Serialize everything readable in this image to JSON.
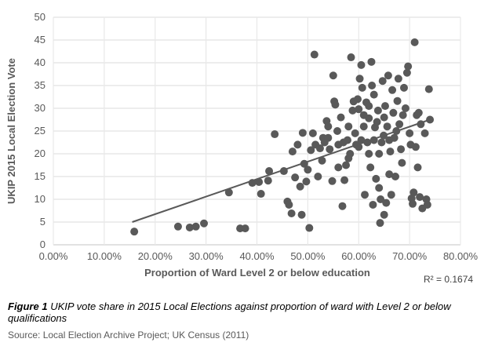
{
  "chart_data": {
    "type": "scatter",
    "title": "",
    "xlabel": "Proportion of Ward Level 2 or below education",
    "ylabel": "UKIP 2015 Local Election Vote",
    "xlim": [
      0,
      80
    ],
    "ylim": [
      0,
      50
    ],
    "x_ticks": [
      "0.00%",
      "10.00%",
      "20.00%",
      "30.00%",
      "40.00%",
      "50.00%",
      "60.00%",
      "70.00%",
      "80.00%"
    ],
    "x_tick_values": [
      0,
      10,
      20,
      30,
      40,
      50,
      60,
      70,
      80
    ],
    "y_ticks": [
      "0",
      "5",
      "10",
      "15",
      "20",
      "25",
      "30",
      "35",
      "40",
      "45",
      "50"
    ],
    "y_tick_values": [
      0,
      5,
      10,
      15,
      20,
      25,
      30,
      35,
      40,
      45,
      50
    ],
    "grid": true,
    "point_color": "#595959",
    "trendline": {
      "type": "linear",
      "x": [
        15.5,
        74
      ],
      "y": [
        5.0,
        27.5
      ],
      "color": "#595959"
    },
    "r_squared_label": "R² = 0.1674",
    "points": [
      [
        15.9,
        2.9
      ],
      [
        24.5,
        4.0
      ],
      [
        26.8,
        3.8
      ],
      [
        28,
        4.0
      ],
      [
        29.6,
        4.7
      ],
      [
        36.7,
        3.6
      ],
      [
        37.7,
        3.6
      ],
      [
        34.5,
        11.5
      ],
      [
        43.5,
        24.3
      ],
      [
        39.1,
        13.6
      ],
      [
        40.4,
        13.8
      ],
      [
        40.8,
        11.2
      ],
      [
        42.2,
        14.1
      ],
      [
        42.4,
        16.2
      ],
      [
        45.3,
        16.2
      ],
      [
        46,
        9.5
      ],
      [
        46.3,
        8.8
      ],
      [
        46.8,
        6.9
      ],
      [
        47,
        20.5
      ],
      [
        47.5,
        14.8
      ],
      [
        48,
        22
      ],
      [
        48.5,
        12.8
      ],
      [
        48.8,
        6.6
      ],
      [
        49,
        24.6
      ],
      [
        49.3,
        17.8
      ],
      [
        49.7,
        13.9
      ],
      [
        50,
        16.5
      ],
      [
        50.3,
        3.7
      ],
      [
        50.6,
        20.8
      ],
      [
        51,
        24.5
      ],
      [
        51.3,
        41.8
      ],
      [
        51.5,
        22
      ],
      [
        52,
        15
      ],
      [
        52.4,
        21.2
      ],
      [
        52.8,
        18.5
      ],
      [
        53,
        23.5
      ],
      [
        53.3,
        22.5
      ],
      [
        53.7,
        27.2
      ],
      [
        54,
        26
      ],
      [
        54.3,
        21
      ],
      [
        54.8,
        14
      ],
      [
        55,
        37.2
      ],
      [
        55.2,
        31.5
      ],
      [
        55.4,
        30.8
      ],
      [
        55.8,
        25
      ],
      [
        56,
        22
      ],
      [
        56.5,
        28
      ],
      [
        56.8,
        8.5
      ],
      [
        57,
        22.5
      ],
      [
        57.2,
        14.2
      ],
      [
        57.5,
        17.5
      ],
      [
        57.8,
        23
      ],
      [
        58,
        26
      ],
      [
        58.3,
        20
      ],
      [
        58.5,
        41.2
      ],
      [
        58.8,
        29.5
      ],
      [
        59,
        31.5
      ],
      [
        59.3,
        24.5
      ],
      [
        59.5,
        22
      ],
      [
        59.8,
        32
      ],
      [
        60,
        21.5
      ],
      [
        60.2,
        36.5
      ],
      [
        60.5,
        39.5
      ],
      [
        60.7,
        34.5
      ],
      [
        61,
        28.5
      ],
      [
        61.2,
        11
      ],
      [
        61.5,
        31.3
      ],
      [
        61.7,
        22.5
      ],
      [
        62,
        20
      ],
      [
        62.3,
        17
      ],
      [
        62.5,
        40.2
      ],
      [
        62.6,
        35
      ],
      [
        62.8,
        8.8
      ],
      [
        63,
        33
      ],
      [
        63.2,
        25.8
      ],
      [
        63.4,
        14.5
      ],
      [
        63.6,
        27
      ],
      [
        63.8,
        29.5
      ],
      [
        64,
        12.5
      ],
      [
        64.2,
        4.8
      ],
      [
        64.3,
        10
      ],
      [
        64.5,
        22.5
      ],
      [
        64.7,
        36
      ],
      [
        64.9,
        24
      ],
      [
        65,
        6.6
      ],
      [
        65.2,
        30.5
      ],
      [
        65.4,
        9.2
      ],
      [
        65.6,
        26
      ],
      [
        65.8,
        37.2
      ],
      [
        66,
        15.5
      ],
      [
        66.2,
        20.5
      ],
      [
        66.4,
        11
      ],
      [
        66.6,
        34
      ],
      [
        66.8,
        29
      ],
      [
        67,
        23.5
      ],
      [
        67.2,
        15
      ],
      [
        67.4,
        25
      ],
      [
        67.6,
        31.6
      ],
      [
        67.8,
        36.5
      ],
      [
        68,
        26.5
      ],
      [
        68.3,
        21
      ],
      [
        68.5,
        18
      ],
      [
        68.7,
        28.5
      ],
      [
        68.9,
        34.5
      ],
      [
        69.2,
        30
      ],
      [
        69.5,
        37.8
      ],
      [
        69.7,
        39.2
      ],
      [
        70,
        24.5
      ],
      [
        70.2,
        22
      ],
      [
        70.4,
        10.2
      ],
      [
        70.6,
        9
      ],
      [
        70.8,
        11.5
      ],
      [
        71,
        44.5
      ],
      [
        71.2,
        21.5
      ],
      [
        71.4,
        28.5
      ],
      [
        71.6,
        17
      ],
      [
        71.8,
        29
      ],
      [
        72,
        10.5
      ],
      [
        72.2,
        26.5
      ],
      [
        72.5,
        8
      ],
      [
        73,
        24.5
      ],
      [
        73.3,
        10
      ],
      [
        73.5,
        8.8
      ],
      [
        73.8,
        34.2
      ],
      [
        74,
        27.5
      ],
      [
        60.5,
        23
      ],
      [
        61,
        26
      ],
      [
        62,
        27.8
      ],
      [
        63,
        23
      ],
      [
        64,
        20
      ],
      [
        65,
        28
      ],
      [
        66,
        23
      ],
      [
        60,
        29.8
      ],
      [
        62,
        30.5
      ],
      [
        58,
        19
      ],
      [
        56,
        17
      ],
      [
        54,
        23.5
      ]
    ]
  },
  "caption": {
    "figure_label": "Figure 1",
    "text": " UKIP vote share in 2015 Local Elections against proportion of ward with Level 2 or below qualifications"
  },
  "source": "Source: Local Election Archive Project; UK Census (2011)"
}
